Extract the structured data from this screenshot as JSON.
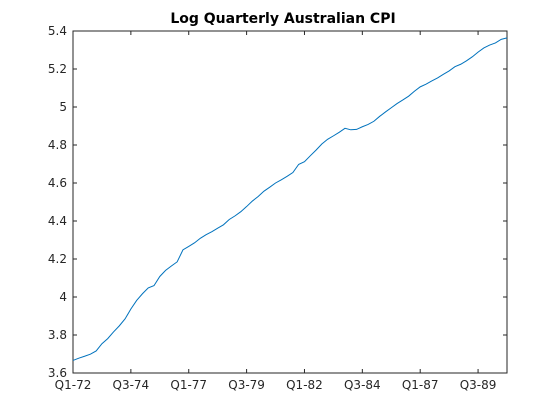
{
  "chart_data": {
    "type": "line",
    "title": "Log Quarterly Australian CPI",
    "xlabel": "",
    "ylabel": "",
    "x_range": [
      0,
      75
    ],
    "ylim": [
      3.6,
      5.4
    ],
    "grid": false,
    "legend": "none",
    "x_ticks": [
      {
        "pos": 0,
        "label": "Q1-72"
      },
      {
        "pos": 10,
        "label": "Q3-74"
      },
      {
        "pos": 20,
        "label": "Q1-77"
      },
      {
        "pos": 30,
        "label": "Q3-79"
      },
      {
        "pos": 40,
        "label": "Q1-82"
      },
      {
        "pos": 50,
        "label": "Q3-84"
      },
      {
        "pos": 60,
        "label": "Q1-87"
      },
      {
        "pos": 70,
        "label": "Q3-89"
      }
    ],
    "y_ticks": [
      3.6,
      3.8,
      4.0,
      4.2,
      4.4,
      4.6,
      4.8,
      5.0,
      5.2,
      5.4
    ],
    "y_tick_labels": [
      "3.6",
      "3.8",
      "4",
      "4.2",
      "4.4",
      "4.6",
      "4.8",
      "5",
      "5.2",
      "5.4"
    ],
    "series": [
      {
        "color": "#0072bd",
        "values": [
          3.666,
          3.678,
          3.688,
          3.699,
          3.716,
          3.754,
          3.781,
          3.816,
          3.848,
          3.885,
          3.937,
          3.982,
          4.017,
          4.048,
          4.06,
          4.108,
          4.14,
          4.163,
          4.185,
          4.248,
          4.266,
          4.285,
          4.309,
          4.328,
          4.344,
          4.362,
          4.38,
          4.408,
          4.427,
          4.449,
          4.476,
          4.505,
          4.529,
          4.557,
          4.578,
          4.6,
          4.617,
          4.635,
          4.655,
          4.698,
          4.712,
          4.743,
          4.773,
          4.805,
          4.83,
          4.848,
          4.867,
          4.888,
          4.88,
          4.882,
          4.896,
          4.908,
          4.925,
          4.951,
          4.974,
          4.996,
          5.018,
          5.037,
          5.057,
          5.083,
          5.106,
          5.12,
          5.137,
          5.153,
          5.172,
          5.19,
          5.212,
          5.225,
          5.243,
          5.264,
          5.289,
          5.311,
          5.326,
          5.337,
          5.356,
          5.364
        ]
      }
    ]
  }
}
